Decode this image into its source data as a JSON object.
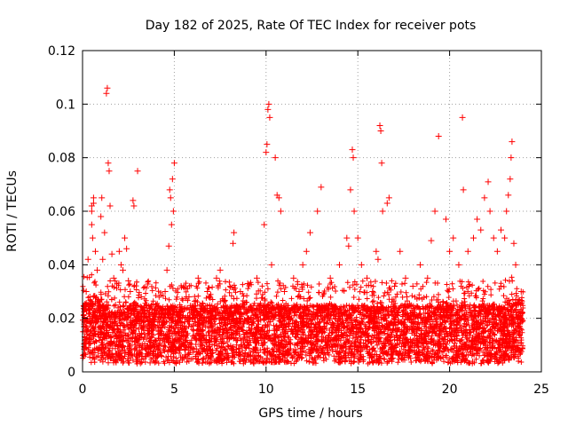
{
  "chart_data": {
    "type": "scatter",
    "title": "Day 182 of 2025, Rate Of TEC Index for receiver pots",
    "xlabel": "GPS time / hours",
    "ylabel": "ROTI / TECUs",
    "xlim": [
      0,
      25
    ],
    "ylim": [
      0,
      0.12
    ],
    "xticks": [
      0,
      5,
      10,
      15,
      20,
      25
    ],
    "xtick_labels": [
      "0",
      "5",
      "10",
      "15",
      "20",
      "25"
    ],
    "yticks": [
      0,
      0.02,
      0.04,
      0.06,
      0.08,
      0.1,
      0.12
    ],
    "ytick_labels": [
      "0",
      "0.02",
      "0.04",
      "0.06",
      "0.08",
      "0.1",
      "0.12"
    ],
    "grid": true,
    "marker": "+",
    "color": "#ff0000",
    "series": [
      {
        "name": "ROTI",
        "note": "dense band of points between about 0.005 and 0.025 TECU/min across 0-24 h; listed points are the visible outliers and band envelope samples",
        "points": [
          [
            0.1,
            0.015
          ],
          [
            0.2,
            0.03
          ],
          [
            0.3,
            0.042
          ],
          [
            0.4,
            0.028
          ],
          [
            0.5,
            0.062
          ],
          [
            0.5,
            0.06
          ],
          [
            0.5,
            0.055
          ],
          [
            0.55,
            0.05
          ],
          [
            0.6,
            0.065
          ],
          [
            0.6,
            0.063
          ],
          [
            0.7,
            0.045
          ],
          [
            0.8,
            0.038
          ],
          [
            1.0,
            0.058
          ],
          [
            1.05,
            0.065
          ],
          [
            1.1,
            0.042
          ],
          [
            1.2,
            0.052
          ],
          [
            1.3,
            0.104
          ],
          [
            1.35,
            0.106
          ],
          [
            1.4,
            0.078
          ],
          [
            1.45,
            0.075
          ],
          [
            1.5,
            0.062
          ],
          [
            1.6,
            0.044
          ],
          [
            1.7,
            0.035
          ],
          [
            1.8,
            0.025
          ],
          [
            2.0,
            0.045
          ],
          [
            2.1,
            0.04
          ],
          [
            2.2,
            0.038
          ],
          [
            2.3,
            0.05
          ],
          [
            2.4,
            0.046
          ],
          [
            2.5,
            0.034
          ],
          [
            2.6,
            0.03
          ],
          [
            2.75,
            0.064
          ],
          [
            2.8,
            0.062
          ],
          [
            3.0,
            0.075
          ],
          [
            3.2,
            0.028
          ],
          [
            3.5,
            0.025
          ],
          [
            4.0,
            0.025
          ],
          [
            4.5,
            0.03
          ],
          [
            4.6,
            0.038
          ],
          [
            4.7,
            0.047
          ],
          [
            4.8,
            0.065
          ],
          [
            4.9,
            0.072
          ],
          [
            5.0,
            0.078
          ],
          [
            4.95,
            0.06
          ],
          [
            4.85,
            0.055
          ],
          [
            4.75,
            0.068
          ],
          [
            5.3,
            0.025
          ],
          [
            5.8,
            0.028
          ],
          [
            6.3,
            0.035
          ],
          [
            6.8,
            0.03
          ],
          [
            7.3,
            0.035
          ],
          [
            7.5,
            0.038
          ],
          [
            8.2,
            0.048
          ],
          [
            8.25,
            0.052
          ],
          [
            8.6,
            0.03
          ],
          [
            9.0,
            0.033
          ],
          [
            9.5,
            0.035
          ],
          [
            9.9,
            0.055
          ],
          [
            10.0,
            0.082
          ],
          [
            10.05,
            0.085
          ],
          [
            10.1,
            0.098
          ],
          [
            10.15,
            0.1
          ],
          [
            10.2,
            0.095
          ],
          [
            10.3,
            0.04
          ],
          [
            10.5,
            0.08
          ],
          [
            10.6,
            0.066
          ],
          [
            10.7,
            0.065
          ],
          [
            10.8,
            0.06
          ],
          [
            11.0,
            0.03
          ],
          [
            11.5,
            0.035
          ],
          [
            11.8,
            0.03
          ],
          [
            12.0,
            0.04
          ],
          [
            12.2,
            0.045
          ],
          [
            12.4,
            0.052
          ],
          [
            12.8,
            0.06
          ],
          [
            13.0,
            0.069
          ],
          [
            13.5,
            0.035
          ],
          [
            14.0,
            0.04
          ],
          [
            14.4,
            0.05
          ],
          [
            14.5,
            0.047
          ],
          [
            14.6,
            0.068
          ],
          [
            14.7,
            0.083
          ],
          [
            14.75,
            0.08
          ],
          [
            14.8,
            0.06
          ],
          [
            15.0,
            0.05
          ],
          [
            15.2,
            0.04
          ],
          [
            15.5,
            0.035
          ],
          [
            15.8,
            0.03
          ],
          [
            16.0,
            0.045
          ],
          [
            16.1,
            0.042
          ],
          [
            16.2,
            0.092
          ],
          [
            16.25,
            0.09
          ],
          [
            16.3,
            0.078
          ],
          [
            16.35,
            0.06
          ],
          [
            16.6,
            0.063
          ],
          [
            16.7,
            0.065
          ],
          [
            17.0,
            0.032
          ],
          [
            17.3,
            0.045
          ],
          [
            17.6,
            0.035
          ],
          [
            18.0,
            0.032
          ],
          [
            18.4,
            0.04
          ],
          [
            18.8,
            0.035
          ],
          [
            19.0,
            0.049
          ],
          [
            19.2,
            0.06
          ],
          [
            19.4,
            0.088
          ],
          [
            19.8,
            0.057
          ],
          [
            20.0,
            0.045
          ],
          [
            20.2,
            0.05
          ],
          [
            20.5,
            0.04
          ],
          [
            20.7,
            0.095
          ],
          [
            20.75,
            0.068
          ],
          [
            21.0,
            0.045
          ],
          [
            21.3,
            0.05
          ],
          [
            21.5,
            0.057
          ],
          [
            21.7,
            0.053
          ],
          [
            21.9,
            0.065
          ],
          [
            22.1,
            0.071
          ],
          [
            22.2,
            0.06
          ],
          [
            22.4,
            0.05
          ],
          [
            22.6,
            0.045
          ],
          [
            22.8,
            0.053
          ],
          [
            23.0,
            0.05
          ],
          [
            23.1,
            0.06
          ],
          [
            23.2,
            0.066
          ],
          [
            23.3,
            0.072
          ],
          [
            23.35,
            0.08
          ],
          [
            23.4,
            0.086
          ],
          [
            23.5,
            0.048
          ],
          [
            23.6,
            0.04
          ],
          [
            23.9,
            0.03
          ]
        ]
      }
    ]
  }
}
